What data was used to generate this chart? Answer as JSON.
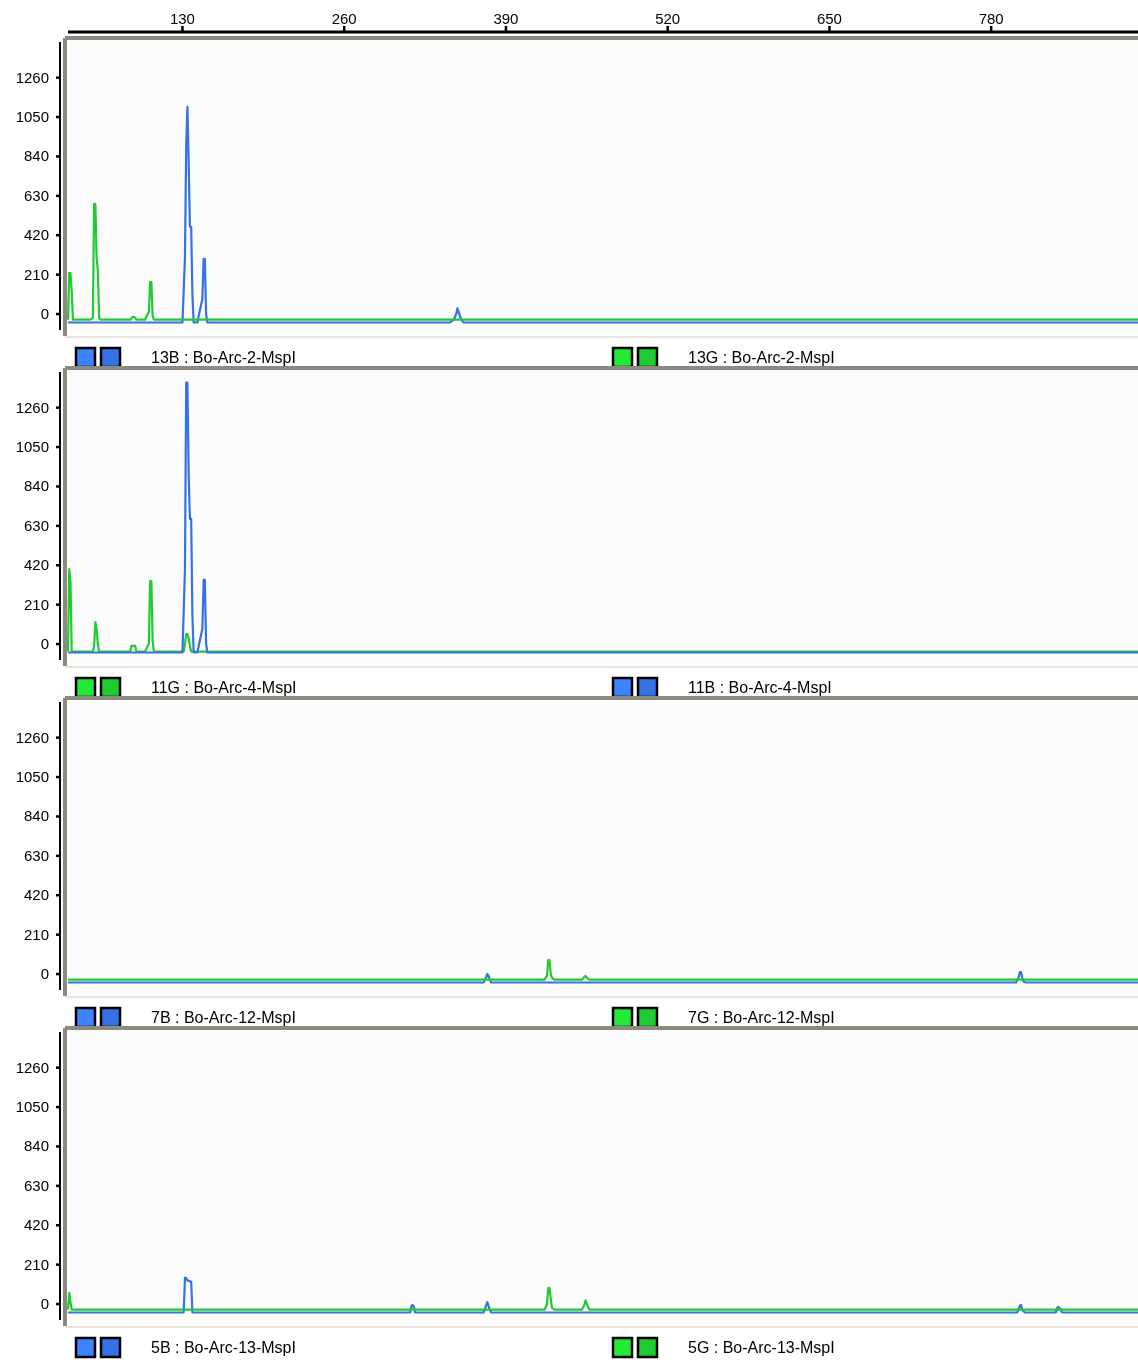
{
  "chart_data": [
    {
      "type": "line",
      "xlim": [
        38,
        898
      ],
      "xticks": [
        130,
        260,
        390,
        520,
        650,
        780
      ],
      "ylim": [
        -85,
        1450
      ],
      "yticks": [
        0,
        210,
        420,
        630,
        840,
        1050,
        1260
      ],
      "legend": "bottom",
      "series": [
        {
          "name": "13B : Bo-Arc-2-MspI",
          "color": "#3572e6",
          "x": [
            38,
            130,
            132,
            133,
            134,
            135,
            136,
            137,
            138,
            139,
            140,
            142,
            144,
            146,
            147,
            148,
            149,
            150,
            152,
            345,
            348,
            350,
            351,
            352,
            354,
            356,
            898
          ],
          "values": [
            -45,
            -45,
            300,
            900,
            1105,
            800,
            465,
            465,
            100,
            -45,
            -45,
            -45,
            20,
            80,
            294,
            294,
            0,
            -45,
            -45,
            -45,
            -30,
            0,
            30,
            10,
            -30,
            -45,
            -45
          ]
        },
        {
          "name": "13G : Bo-Arc-2-MspI",
          "color": "#1ecb30",
          "x": [
            38,
            39,
            40,
            41,
            42,
            44,
            56,
            58,
            59,
            60,
            61,
            62,
            63,
            64,
            88,
            90,
            91,
            92,
            93,
            100,
            102,
            103,
            104,
            105,
            106,
            107,
            108,
            898
          ],
          "values": [
            -30,
            220,
            219,
            120,
            -30,
            -30,
            -30,
            -20,
            587,
            587,
            300,
            230,
            -20,
            -30,
            -30,
            -15,
            -15,
            -20,
            -30,
            -30,
            0,
            10,
            170,
            170,
            -10,
            -30,
            -30,
            -30
          ]
        }
      ]
    },
    {
      "type": "line",
      "xlim": [
        38,
        898
      ],
      "ylim": [
        -85,
        1450
      ],
      "yticks": [
        0,
        210,
        420,
        630,
        840,
        1050,
        1260
      ],
      "tick_labels": "y",
      "legend": "bottom",
      "series": [
        {
          "name": "11G : Bo-Arc-4-MspI",
          "color": "#1ecb30",
          "x": [
            38,
            39,
            40,
            41,
            42,
            58,
            59,
            60,
            61,
            62,
            63,
            88,
            89,
            90,
            91,
            92,
            93,
            100,
            102,
            103,
            104,
            105,
            106,
            107,
            108,
            131,
            132,
            133,
            134,
            135,
            136,
            137,
            138,
            898
          ],
          "values": [
            -40,
            400,
            330,
            -40,
            -40,
            -40,
            -10,
            117,
            80,
            0,
            -40,
            -40,
            -10,
            -10,
            -10,
            -10,
            -40,
            -40,
            -10,
            0,
            336,
            336,
            20,
            -40,
            -40,
            -40,
            0,
            53,
            53,
            30,
            -10,
            -40,
            -40,
            -40
          ]
        },
        {
          "name": "11B : Bo-Arc-4-MspI",
          "color": "#3572e6",
          "x": [
            38,
            130,
            132,
            133,
            134,
            135,
            136,
            137,
            138,
            139,
            140,
            142,
            144,
            146,
            147,
            148,
            149,
            150,
            152,
            898
          ],
          "values": [
            -45,
            -45,
            400,
            1393,
            1393,
            900,
            667,
            667,
            150,
            -45,
            -45,
            -45,
            20,
            80,
            342,
            342,
            0,
            -45,
            -45,
            -45
          ]
        }
      ]
    },
    {
      "type": "line",
      "xlim": [
        38,
        898
      ],
      "ylim": [
        -85,
        1450
      ],
      "yticks": [
        0,
        210,
        420,
        630,
        840,
        1050,
        1260
      ],
      "tick_labels": "y",
      "legend": "bottom",
      "series": [
        {
          "name": "7B : Bo-Arc-12-MspI",
          "color": "#3572e6",
          "x": [
            38,
            372,
            374,
            375,
            376,
            378,
            800,
            802,
            803,
            804,
            805,
            806,
            808,
            898
          ],
          "values": [
            -45,
            -45,
            -20,
            0,
            -10,
            -45,
            -45,
            -20,
            10,
            10,
            -20,
            -40,
            -45,
            -45
          ]
        },
        {
          "name": "7G : Bo-Arc-12-MspI",
          "color": "#1ecb30",
          "x": [
            38,
            421,
            423,
            424,
            425,
            426,
            427,
            429,
            451,
            453,
            454,
            455,
            457,
            898
          ],
          "values": [
            -30,
            -30,
            -10,
            75,
            75,
            0,
            -20,
            -30,
            -30,
            -15,
            -10,
            -20,
            -30,
            -30
          ]
        }
      ]
    },
    {
      "type": "line",
      "xlim": [
        38,
        898
      ],
      "ylim": [
        -85,
        1450
      ],
      "yticks": [
        0,
        210,
        420,
        630,
        840,
        1050,
        1260
      ],
      "tick_labels": "y",
      "legend": "bottom",
      "series": [
        {
          "name": "5B : Bo-Arc-13-MspI",
          "color": "#3572e6",
          "x": [
            38,
            131,
            132,
            133,
            134,
            135,
            136,
            137,
            138,
            139,
            313,
            314,
            315,
            316,
            317,
            318,
            372,
            374,
            375,
            376,
            378,
            801,
            803,
            804,
            805,
            807,
            832,
            833,
            834,
            835,
            837,
            898
          ],
          "values": [
            -45,
            -45,
            139,
            139,
            125,
            125,
            120,
            120,
            -45,
            -45,
            -45,
            -10,
            -5,
            -15,
            -45,
            -45,
            -45,
            -10,
            10,
            -10,
            -45,
            -45,
            -10,
            -5,
            -30,
            -45,
            -45,
            -20,
            -15,
            -20,
            -45,
            -45
          ]
        },
        {
          "name": "5G : Bo-Arc-13-MspI",
          "color": "#1ecb30",
          "x": [
            38,
            39,
            40,
            41,
            42,
            421,
            423,
            424,
            425,
            426,
            427,
            429,
            451,
            453,
            454,
            455,
            457,
            898
          ],
          "values": [
            -30,
            59,
            10,
            -30,
            -30,
            -30,
            0,
            85,
            85,
            30,
            -20,
            -30,
            -30,
            -5,
            20,
            0,
            -30,
            -30
          ]
        }
      ]
    }
  ]
}
